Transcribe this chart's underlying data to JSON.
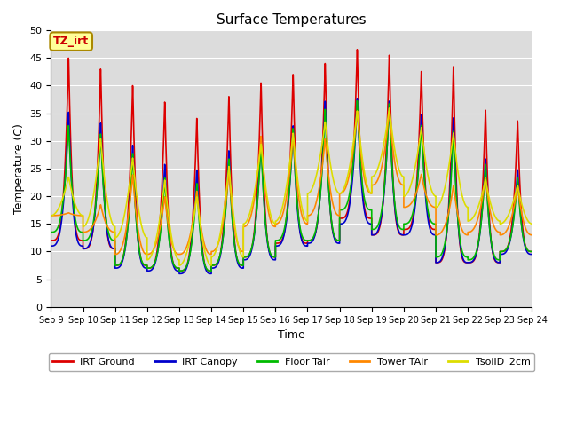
{
  "title": "Surface Temperatures",
  "xlabel": "Time",
  "ylabel": "Temperature (C)",
  "ylim": [
    0,
    50
  ],
  "annotation": "TZ_irt",
  "annotation_color": "#cc0000",
  "annotation_bg": "#ffff99",
  "annotation_border": "#aa8800",
  "bg_color": "#dcdcdc",
  "fig_bg": "#ffffff",
  "grid_color": "#ffffff",
  "xtick_labels": [
    "Sep 9",
    "Sep 10",
    "Sep 11",
    "Sep 12",
    "Sep 13",
    "Sep 14",
    "Sep 15",
    "Sep 16",
    "Sep 17",
    "Sep 18",
    "Sep 19",
    "Sep 20",
    "Sep 21",
    "Sep 22",
    "Sep 23",
    "Sep 24"
  ],
  "series": [
    {
      "label": "IRT Ground",
      "color": "#dd0000",
      "linewidth": 1.2,
      "peaks": [
        45.5,
        43.5,
        40.5,
        37.5,
        34.5,
        38.5,
        41.0,
        42.5,
        44.5,
        47.0,
        46.0,
        43.0,
        44.0,
        36.0,
        34.0,
        34.0
      ],
      "troughs": [
        12.0,
        10.5,
        7.5,
        7.0,
        6.5,
        7.5,
        9.0,
        11.5,
        12.0,
        16.0,
        13.0,
        14.0,
        8.0,
        8.0,
        10.0,
        10.0
      ],
      "peak_sharpness": 0.25
    },
    {
      "label": "IRT Canopy",
      "color": "#0000cc",
      "linewidth": 1.2,
      "peaks": [
        35.5,
        33.5,
        29.5,
        26.0,
        25.0,
        28.5,
        31.0,
        33.0,
        37.5,
        38.0,
        37.5,
        35.0,
        34.5,
        27.0,
        25.0,
        25.0
      ],
      "troughs": [
        11.0,
        10.5,
        7.0,
        6.5,
        6.0,
        7.0,
        8.5,
        11.0,
        11.5,
        15.0,
        13.0,
        13.0,
        8.0,
        8.0,
        9.5,
        9.5
      ],
      "peak_sharpness": 0.3
    },
    {
      "label": "Floor Tair",
      "color": "#00bb00",
      "linewidth": 1.2,
      "peaks": [
        33.0,
        31.5,
        28.0,
        23.5,
        22.5,
        27.0,
        30.0,
        32.5,
        36.0,
        37.5,
        37.0,
        33.0,
        32.0,
        26.0,
        23.5,
        23.5
      ],
      "troughs": [
        13.5,
        12.0,
        7.5,
        7.0,
        6.5,
        7.5,
        9.0,
        12.0,
        12.0,
        17.5,
        14.0,
        15.0,
        9.0,
        8.5,
        10.0,
        9.5
      ],
      "peak_sharpness": 0.3
    },
    {
      "label": "Tower TAir",
      "color": "#ff8800",
      "linewidth": 1.2,
      "peaks": [
        17.0,
        18.5,
        24.0,
        20.0,
        21.0,
        24.5,
        31.0,
        31.0,
        30.5,
        35.5,
        35.5,
        24.0,
        22.0,
        23.5,
        22.0,
        22.0
      ],
      "troughs": [
        16.5,
        13.5,
        9.5,
        9.5,
        9.5,
        10.0,
        14.5,
        15.0,
        16.5,
        20.5,
        22.0,
        18.0,
        13.0,
        13.5,
        13.0,
        13.0
      ],
      "peak_sharpness": 0.4
    },
    {
      "label": "TsoilD_2cm",
      "color": "#dddd00",
      "linewidth": 1.2,
      "peaks": [
        23.5,
        30.5,
        27.0,
        23.0,
        20.0,
        25.5,
        29.5,
        31.5,
        33.5,
        35.5,
        36.0,
        32.5,
        31.5,
        23.0,
        22.0,
        22.0
      ],
      "troughs": [
        16.5,
        14.5,
        12.5,
        8.5,
        7.5,
        9.0,
        15.0,
        15.5,
        20.5,
        20.5,
        23.5,
        20.0,
        18.0,
        15.5,
        15.0,
        14.0
      ],
      "peak_sharpness": 0.5
    }
  ]
}
